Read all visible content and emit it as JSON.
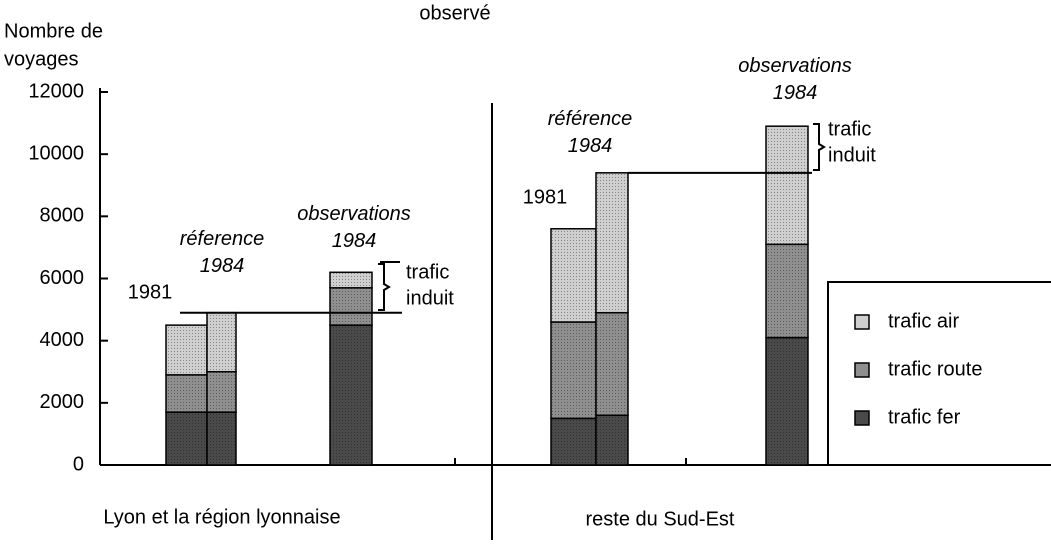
{
  "chart_data": {
    "type": "stacked_bar",
    "title": "observé",
    "y_label": [
      "Nombre de",
      "voyages"
    ],
    "categories": [
      "1981",
      "réference 1984",
      "observations 1984",
      "1981",
      "référence 1984",
      "observations 1984"
    ],
    "groups": [
      "Lyon et la région lyonnaise",
      "reste du Sud-Est"
    ],
    "series": [
      {
        "name": "trafic fer",
        "color": "#4a4a4a",
        "values": [
          1700,
          1700,
          4500,
          1500,
          1600,
          4100
        ]
      },
      {
        "name": "trafic route",
        "color": "#8f8f8f",
        "values": [
          1200,
          1300,
          1200,
          3100,
          3300,
          3000
        ]
      },
      {
        "name": "trafic air",
        "color": "#cfcfcf",
        "values": [
          1600,
          1900,
          500,
          3000,
          4500,
          3800
        ]
      }
    ],
    "annotations": [
      [
        "trafic",
        "induit"
      ],
      [
        "trafic",
        "induit"
      ]
    ],
    "ylim": [
      0,
      12000
    ],
    "yticks": [
      0,
      2000,
      4000,
      6000,
      8000,
      10000,
      12000
    ]
  }
}
